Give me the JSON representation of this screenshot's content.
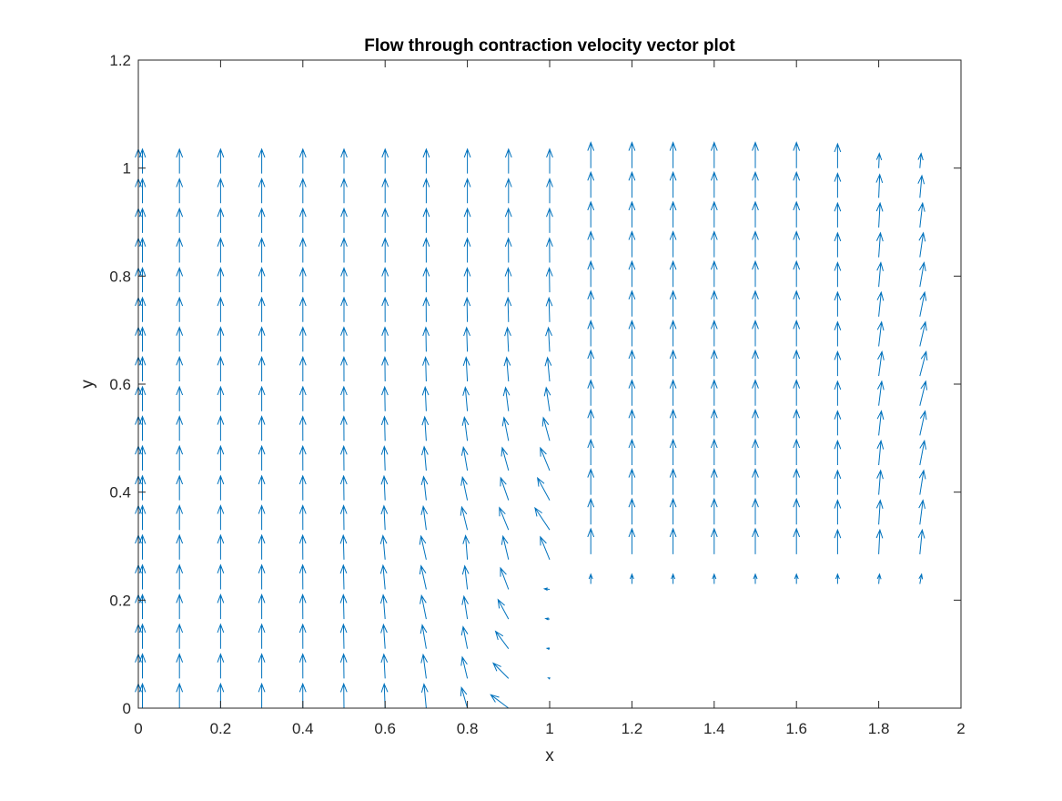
{
  "chart_data": {
    "type": "quiver",
    "title": "Flow through contraction velocity vector plot",
    "xlabel": "x",
    "ylabel": "y",
    "xlim": [
      0,
      2
    ],
    "ylim": [
      0,
      1.2
    ],
    "xticks": [
      0,
      0.2,
      0.4,
      0.6,
      0.8,
      1,
      1.2,
      1.4,
      1.6,
      1.8,
      2
    ],
    "xtick_labels": [
      "0",
      "0.2",
      "0.4",
      "0.6",
      "0.8",
      "1",
      "1.2",
      "1.4",
      "1.6",
      "1.8",
      "2"
    ],
    "yticks": [
      0,
      0.2,
      0.4,
      0.6,
      0.8,
      1,
      1.2
    ],
    "ytick_labels": [
      "0",
      "0.2",
      "0.4",
      "0.6",
      "0.8",
      "1",
      "1.2"
    ],
    "grid": false,
    "box": true,
    "legend": "none",
    "arrow_color": "#0072BD",
    "x_stations": [
      0,
      0.01,
      0.1,
      0.2,
      0.3,
      0.4,
      0.5,
      0.6,
      0.7,
      0.8,
      0.9,
      1.0,
      1.1,
      1.2,
      1.3,
      1.4,
      1.5,
      1.6,
      1.7,
      1.8,
      1.9
    ],
    "vector_field_note_values": {
      "row_spacing_y": 0.055,
      "step_y_corner": 0.2,
      "step_x_corner": 1.0,
      "outlet_bottom_y": 0.23,
      "inlet_top_y": 1.0
    }
  },
  "colors": {
    "axis": "#262626",
    "background": "#ffffff",
    "arrows": "#0072BD"
  }
}
